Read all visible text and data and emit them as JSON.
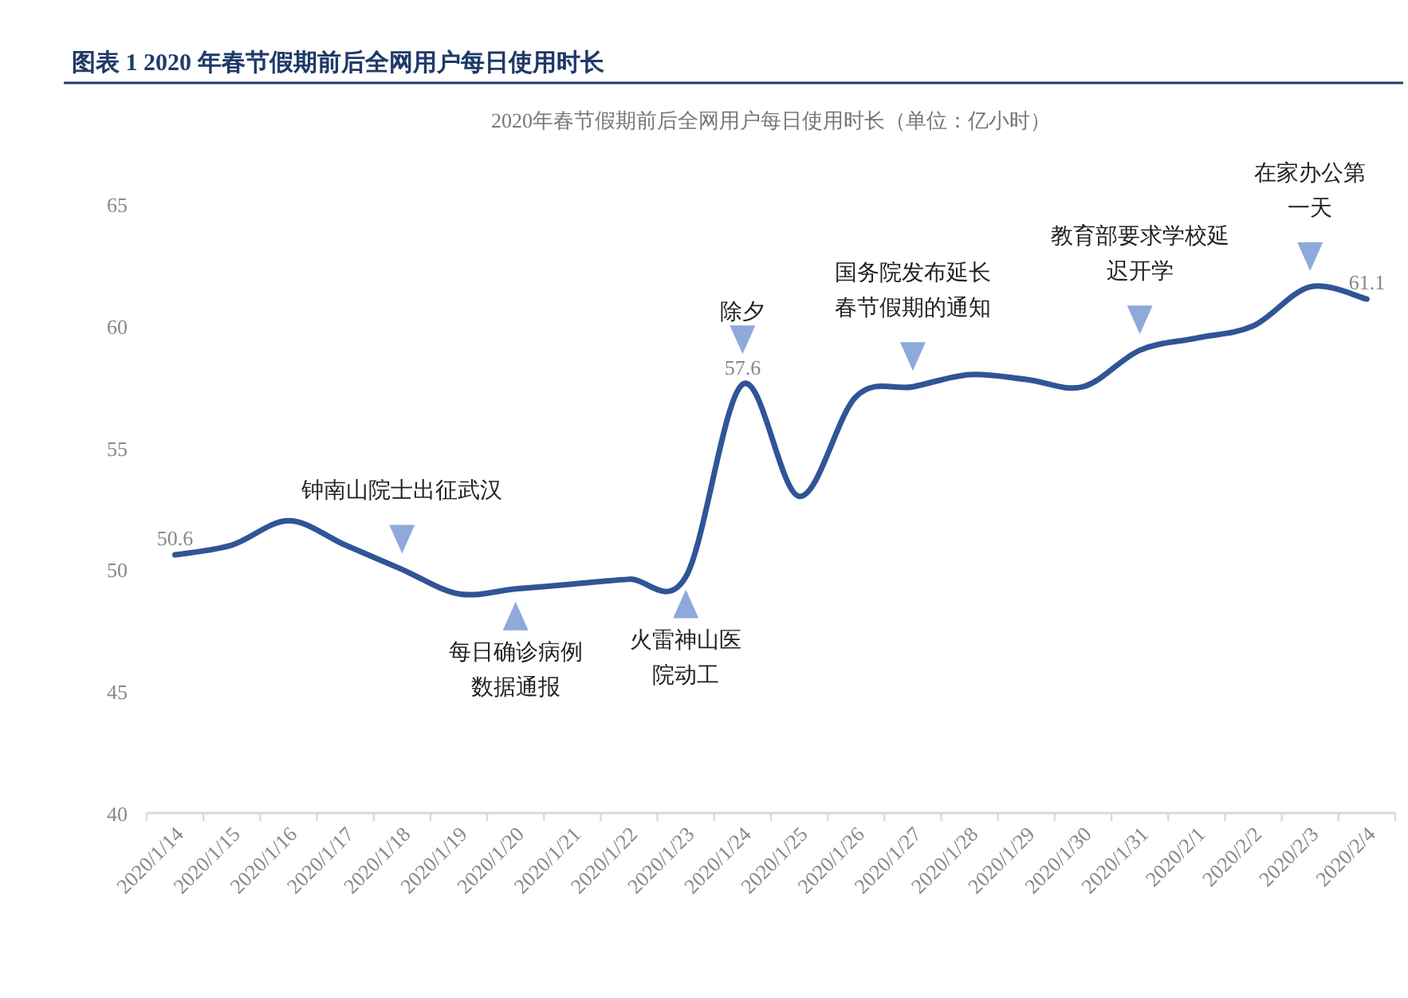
{
  "chart_data": {
    "type": "line",
    "title": "图表 1   2020 年春节假期前后全网用户每日使用时长",
    "subtitle": "2020年春节假期前后全网用户每日使用时长（单位：亿小时）",
    "categories": [
      "2020/1/14",
      "2020/1/15",
      "2020/1/16",
      "2020/1/17",
      "2020/1/18",
      "2020/1/19",
      "2020/1/20",
      "2020/1/21",
      "2020/1/22",
      "2020/1/23",
      "2020/1/24",
      "2020/1/25",
      "2020/1/26",
      "2020/1/27",
      "2020/1/28",
      "2020/1/29",
      "2020/1/30",
      "2020/1/31",
      "2020/2/1",
      "2020/2/2",
      "2020/2/3",
      "2020/2/4"
    ],
    "series": [
      {
        "color": "#2f5597",
        "values": [
          50.6,
          51.0,
          52.0,
          51.0,
          50.0,
          49.0,
          49.2,
          49.4,
          49.6,
          49.7,
          57.6,
          53.0,
          57.1,
          57.5,
          58.0,
          57.8,
          57.5,
          59.0,
          59.5,
          60.0,
          61.6,
          61.1
        ],
        "value_labels": [
          "50.6",
          null,
          null,
          null,
          null,
          null,
          null,
          null,
          null,
          null,
          "57.6",
          null,
          null,
          null,
          null,
          null,
          null,
          null,
          null,
          null,
          null,
          "61.1"
        ]
      }
    ],
    "ylim": [
      40,
      65
    ],
    "yticks": [
      40,
      45,
      50,
      55,
      60,
      65
    ],
    "grid": false,
    "annotations": [
      {
        "text": "钟南山院士出征武汉",
        "x": "2020/1/18",
        "y": 50.0
      },
      {
        "text": "每日确诊病例数据通报",
        "x": "2020/1/20",
        "y": 49.2
      },
      {
        "text": "火雷神山医院动工",
        "x": "2020/1/23",
        "y": 49.7
      },
      {
        "text": "除夕",
        "x": "2020/1/24",
        "y": 57.6
      },
      {
        "text": "国务院发布延长春节假期的通知",
        "x": "2020/1/27",
        "y": 57.5
      },
      {
        "text": "教育部要求学校延迟开学",
        "x": "2020/1/31",
        "y": 59.0
      },
      {
        "text": "在家办公第一天",
        "x": "2020/2/3",
        "y": 61.6
      }
    ]
  }
}
